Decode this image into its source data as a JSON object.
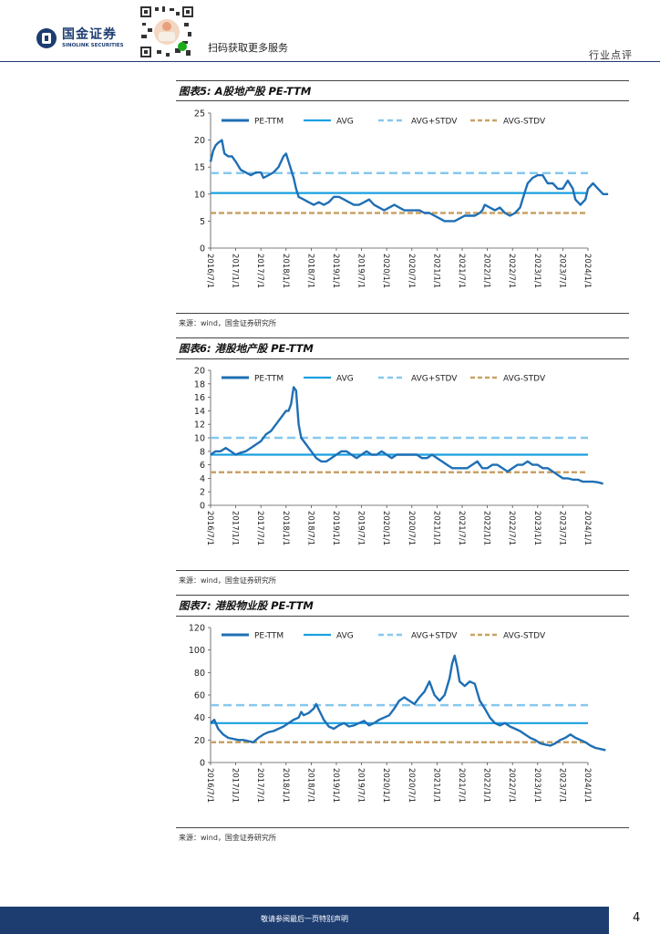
{
  "header": {
    "logo_cn": "国金证券",
    "logo_en": "SINOLINK SECURITIES",
    "qr_label": "扫码获取更多服务",
    "section_tag": "行业点评"
  },
  "charts": [
    {
      "title": "图表5: A股地产股 PE-TTM",
      "source": "来源：wind，国金证券研究所"
    },
    {
      "title": "图表6: 港股地产股 PE-TTM",
      "source": "来源：wind，国金证券研究所"
    },
    {
      "title": "图表7: 港股物业股 PE-TTM",
      "source": "来源：wind，国金证券研究所"
    }
  ],
  "footer": {
    "disclaimer": "敬请参阅最后一页特别声明",
    "page_number": "4"
  },
  "colors": {
    "pe": "#1f6fb5",
    "avg": "#1aa0e0",
    "avg_plus": "#86c8ee",
    "avg_minus": "#c9a266"
  },
  "chart_data": [
    {
      "type": "line",
      "title": "图表5: A股地产股 PE-TTM",
      "legend": [
        "PE-TTM",
        "AVG",
        "AVG+STDV",
        "AVG-STDV"
      ],
      "x_ticks": [
        "2016/7/1",
        "2017/1/1",
        "2017/7/1",
        "2018/1/1",
        "2018/7/1",
        "2019/1/1",
        "2019/7/1",
        "2020/1/1",
        "2020/7/1",
        "2021/1/1",
        "2021/7/1",
        "2022/1/1",
        "2022/7/1",
        "2023/1/1",
        "2023/7/1",
        "2024/1/1"
      ],
      "ylim": [
        0,
        25
      ],
      "y_ticks": [
        0,
        5,
        10,
        15,
        20,
        25
      ],
      "avg": 10.2,
      "avg_plus_stdv": 13.9,
      "avg_minus_stdv": 6.5,
      "series": [
        {
          "name": "PE-TTM",
          "points": [
            [
              0,
              16
            ],
            [
              0.1,
              18
            ],
            [
              0.2,
              19
            ],
            [
              0.3,
              19.5
            ],
            [
              0.45,
              20
            ],
            [
              0.55,
              17.5
            ],
            [
              0.7,
              17
            ],
            [
              0.85,
              17
            ],
            [
              1,
              16
            ],
            [
              1.2,
              14.5
            ],
            [
              1.4,
              14
            ],
            [
              1.6,
              13.5
            ],
            [
              1.8,
              14
            ],
            [
              2,
              14
            ],
            [
              2.1,
              13
            ],
            [
              2.3,
              13.5
            ],
            [
              2.5,
              14
            ],
            [
              2.7,
              15
            ],
            [
              2.9,
              17
            ],
            [
              3,
              17.5
            ],
            [
              3.1,
              16
            ],
            [
              3.3,
              13
            ],
            [
              3.4,
              11
            ],
            [
              3.5,
              9.5
            ],
            [
              3.7,
              9
            ],
            [
              3.9,
              8.5
            ],
            [
              4.1,
              8
            ],
            [
              4.3,
              8.5
            ],
            [
              4.5,
              8
            ],
            [
              4.7,
              8.5
            ],
            [
              4.9,
              9.5
            ],
            [
              5.1,
              9.5
            ],
            [
              5.3,
              9
            ],
            [
              5.5,
              8.5
            ],
            [
              5.7,
              8
            ],
            [
              5.9,
              8
            ],
            [
              6.1,
              8.5
            ],
            [
              6.3,
              9
            ],
            [
              6.5,
              8
            ],
            [
              6.7,
              7.5
            ],
            [
              6.9,
              7
            ],
            [
              7.1,
              7.5
            ],
            [
              7.3,
              8
            ],
            [
              7.5,
              7.5
            ],
            [
              7.7,
              7
            ],
            [
              7.9,
              7
            ],
            [
              8.1,
              7
            ],
            [
              8.3,
              7
            ],
            [
              8.5,
              6.5
            ],
            [
              8.7,
              6.5
            ],
            [
              8.9,
              6
            ],
            [
              9.1,
              5.5
            ],
            [
              9.3,
              5
            ],
            [
              9.5,
              5
            ],
            [
              9.7,
              5
            ],
            [
              9.9,
              5.5
            ],
            [
              10.1,
              6
            ],
            [
              10.3,
              6
            ],
            [
              10.5,
              6
            ],
            [
              10.7,
              6.5
            ],
            [
              10.8,
              7
            ],
            [
              10.9,
              8
            ],
            [
              11.1,
              7.5
            ],
            [
              11.3,
              7
            ],
            [
              11.5,
              7.5
            ],
            [
              11.7,
              6.5
            ],
            [
              11.9,
              6
            ],
            [
              12.1,
              6.5
            ],
            [
              12.2,
              7
            ],
            [
              12.3,
              7.5
            ],
            [
              12.4,
              9
            ],
            [
              12.5,
              10.5
            ],
            [
              12.6,
              12
            ],
            [
              12.8,
              13
            ],
            [
              13,
              13.5
            ],
            [
              13.2,
              13.5
            ],
            [
              13.4,
              12
            ],
            [
              13.6,
              12
            ],
            [
              13.8,
              11
            ],
            [
              14,
              11
            ],
            [
              14.2,
              12.5
            ],
            [
              14.4,
              11
            ],
            [
              14.5,
              9
            ],
            [
              14.7,
              8
            ],
            [
              14.9,
              9
            ],
            [
              15,
              11
            ],
            [
              15.2,
              12
            ],
            [
              15.4,
              11
            ],
            [
              15.6,
              10
            ],
            [
              15.8,
              10
            ]
          ]
        }
      ]
    },
    {
      "type": "line",
      "title": "图表6: 港股地产股 PE-TTM",
      "legend": [
        "PE-TTM",
        "AVG",
        "AVG+STDV",
        "AVG-STDV"
      ],
      "x_ticks": [
        "2016/7/1",
        "2017/1/1",
        "2017/7/1",
        "2018/1/1",
        "2018/7/1",
        "2019/1/1",
        "2019/7/1",
        "2020/1/1",
        "2020/7/1",
        "2021/1/1",
        "2021/7/1",
        "2022/1/1",
        "2022/7/1",
        "2023/1/1",
        "2023/7/1",
        "2024/1/1"
      ],
      "ylim": [
        0,
        20
      ],
      "y_ticks": [
        0,
        2,
        4,
        6,
        8,
        10,
        12,
        14,
        16,
        18,
        20
      ],
      "avg": 7.5,
      "avg_plus_stdv": 10.0,
      "avg_minus_stdv": 4.9,
      "series": [
        {
          "name": "PE-TTM",
          "points": [
            [
              0,
              7.5
            ],
            [
              0.2,
              8
            ],
            [
              0.4,
              8
            ],
            [
              0.6,
              8.5
            ],
            [
              0.8,
              8
            ],
            [
              1,
              7.5
            ],
            [
              1.2,
              7.8
            ],
            [
              1.4,
              8
            ],
            [
              1.6,
              8.5
            ],
            [
              1.8,
              9
            ],
            [
              2,
              9.5
            ],
            [
              2.2,
              10.5
            ],
            [
              2.4,
              11
            ],
            [
              2.6,
              12
            ],
            [
              2.8,
              13
            ],
            [
              3,
              14
            ],
            [
              3.1,
              14
            ],
            [
              3.2,
              15
            ],
            [
              3.3,
              17.5
            ],
            [
              3.4,
              17
            ],
            [
              3.5,
              12
            ],
            [
              3.6,
              10
            ],
            [
              3.8,
              9
            ],
            [
              4,
              8
            ],
            [
              4.2,
              7
            ],
            [
              4.4,
              6.5
            ],
            [
              4.6,
              6.5
            ],
            [
              4.8,
              7
            ],
            [
              5,
              7.5
            ],
            [
              5.2,
              8
            ],
            [
              5.4,
              8
            ],
            [
              5.6,
              7.5
            ],
            [
              5.8,
              7
            ],
            [
              6,
              7.5
            ],
            [
              6.2,
              8
            ],
            [
              6.4,
              7.5
            ],
            [
              6.6,
              7.5
            ],
            [
              6.8,
              8
            ],
            [
              7,
              7.5
            ],
            [
              7.2,
              7
            ],
            [
              7.4,
              7.5
            ],
            [
              7.6,
              7.5
            ],
            [
              7.8,
              7.5
            ],
            [
              8,
              7.5
            ],
            [
              8.2,
              7.5
            ],
            [
              8.4,
              7
            ],
            [
              8.6,
              7
            ],
            [
              8.8,
              7.5
            ],
            [
              9,
              7
            ],
            [
              9.2,
              6.5
            ],
            [
              9.4,
              6
            ],
            [
              9.6,
              5.5
            ],
            [
              9.8,
              5.5
            ],
            [
              10,
              5.5
            ],
            [
              10.2,
              5.5
            ],
            [
              10.4,
              6
            ],
            [
              10.6,
              6.5
            ],
            [
              10.8,
              5.5
            ],
            [
              11,
              5.5
            ],
            [
              11.2,
              6
            ],
            [
              11.4,
              6
            ],
            [
              11.6,
              5.5
            ],
            [
              11.8,
              5
            ],
            [
              12,
              5.5
            ],
            [
              12.2,
              6
            ],
            [
              12.4,
              6
            ],
            [
              12.6,
              6.5
            ],
            [
              12.8,
              6
            ],
            [
              13,
              6
            ],
            [
              13.2,
              5.5
            ],
            [
              13.4,
              5.5
            ],
            [
              13.6,
              5
            ],
            [
              13.8,
              4.5
            ],
            [
              14,
              4
            ],
            [
              14.2,
              4
            ],
            [
              14.4,
              3.8
            ],
            [
              14.6,
              3.8
            ],
            [
              14.8,
              3.5
            ],
            [
              15,
              3.5
            ],
            [
              15.2,
              3.5
            ],
            [
              15.4,
              3.4
            ],
            [
              15.6,
              3.2
            ]
          ]
        }
      ]
    },
    {
      "type": "line",
      "title": "图表7: 港股物业股 PE-TTM",
      "legend": [
        "PE-TTM",
        "AVG",
        "AVG+STDV",
        "AVG-STDV"
      ],
      "x_ticks": [
        "2016/7/1",
        "2017/1/1",
        "2017/7/1",
        "2018/1/1",
        "2018/7/1",
        "2019/1/1",
        "2019/7/1",
        "2020/1/1",
        "2020/7/1",
        "2021/1/1",
        "2021/7/1",
        "2022/1/1",
        "2022/7/1",
        "2023/1/1",
        "2023/7/1",
        "2024/1/1"
      ],
      "ylim": [
        0,
        120
      ],
      "y_ticks": [
        0,
        20,
        40,
        60,
        80,
        100,
        120
      ],
      "avg": 35,
      "avg_plus_stdv": 51,
      "avg_minus_stdv": 18,
      "series": [
        {
          "name": "PE-TTM",
          "points": [
            [
              0,
              35
            ],
            [
              0.15,
              38
            ],
            [
              0.3,
              30
            ],
            [
              0.5,
              25
            ],
            [
              0.7,
              22
            ],
            [
              0.9,
              21
            ],
            [
              1.1,
              20
            ],
            [
              1.3,
              20
            ],
            [
              1.5,
              19
            ],
            [
              1.7,
              18
            ],
            [
              1.9,
              22
            ],
            [
              2.1,
              25
            ],
            [
              2.3,
              27
            ],
            [
              2.5,
              28
            ],
            [
              2.7,
              30
            ],
            [
              2.9,
              32
            ],
            [
              3.1,
              35
            ],
            [
              3.3,
              38
            ],
            [
              3.5,
              40
            ],
            [
              3.6,
              45
            ],
            [
              3.7,
              42
            ],
            [
              3.9,
              44
            ],
            [
              4.1,
              48
            ],
            [
              4.2,
              52
            ],
            [
              4.3,
              47
            ],
            [
              4.5,
              38
            ],
            [
              4.7,
              32
            ],
            [
              4.9,
              30
            ],
            [
              5.1,
              33
            ],
            [
              5.3,
              35
            ],
            [
              5.5,
              32
            ],
            [
              5.7,
              33
            ],
            [
              5.9,
              35
            ],
            [
              6.1,
              37
            ],
            [
              6.3,
              33
            ],
            [
              6.5,
              35
            ],
            [
              6.7,
              38
            ],
            [
              6.9,
              40
            ],
            [
              7.1,
              42
            ],
            [
              7.3,
              48
            ],
            [
              7.5,
              55
            ],
            [
              7.7,
              58
            ],
            [
              7.9,
              55
            ],
            [
              8.1,
              52
            ],
            [
              8.3,
              58
            ],
            [
              8.5,
              63
            ],
            [
              8.7,
              72
            ],
            [
              8.9,
              60
            ],
            [
              9.1,
              55
            ],
            [
              9.3,
              60
            ],
            [
              9.5,
              75
            ],
            [
              9.6,
              88
            ],
            [
              9.7,
              95
            ],
            [
              9.8,
              85
            ],
            [
              9.9,
              72
            ],
            [
              10.1,
              68
            ],
            [
              10.3,
              72
            ],
            [
              10.5,
              70
            ],
            [
              10.7,
              55
            ],
            [
              10.9,
              48
            ],
            [
              11.1,
              40
            ],
            [
              11.3,
              35
            ],
            [
              11.5,
              33
            ],
            [
              11.7,
              35
            ],
            [
              11.9,
              32
            ],
            [
              12.1,
              30
            ],
            [
              12.3,
              28
            ],
            [
              12.5,
              25
            ],
            [
              12.7,
              22
            ],
            [
              12.9,
              20
            ],
            [
              13.1,
              17
            ],
            [
              13.3,
              16
            ],
            [
              13.5,
              15
            ],
            [
              13.7,
              17
            ],
            [
              13.9,
              20
            ],
            [
              14.1,
              22
            ],
            [
              14.3,
              25
            ],
            [
              14.5,
              22
            ],
            [
              14.7,
              20
            ],
            [
              14.9,
              18
            ],
            [
              15.1,
              15
            ],
            [
              15.3,
              13
            ],
            [
              15.5,
              12
            ],
            [
              15.7,
              11
            ]
          ]
        }
      ]
    }
  ]
}
